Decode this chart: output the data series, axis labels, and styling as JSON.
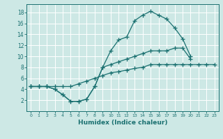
{
  "xlabel": "Humidex (Indice chaleur)",
  "background_color": "#cde8e5",
  "grid_color": "#ffffff",
  "line_color": "#1a7070",
  "xlim": [
    -0.5,
    23.5
  ],
  "ylim": [
    0,
    19.5
  ],
  "xticks": [
    0,
    1,
    2,
    3,
    4,
    5,
    6,
    7,
    8,
    9,
    10,
    11,
    12,
    13,
    14,
    15,
    16,
    17,
    18,
    19,
    20,
    21,
    22,
    23
  ],
  "yticks": [
    2,
    4,
    6,
    8,
    10,
    12,
    14,
    16,
    18
  ],
  "line1_x": [
    0,
    1,
    2,
    3,
    4,
    5,
    6,
    7,
    8,
    9,
    10,
    11,
    12,
    13,
    14,
    15,
    16,
    17,
    18,
    19,
    20
  ],
  "line1_y": [
    4.5,
    4.5,
    4.5,
    4.0,
    3.0,
    1.8,
    1.8,
    2.2,
    4.5,
    8.0,
    11.0,
    13.0,
    13.5,
    16.5,
    17.5,
    18.2,
    17.5,
    16.8,
    15.2,
    13.2,
    10.0
  ],
  "line2_x": [
    0,
    1,
    2,
    3,
    4,
    5,
    6,
    7,
    8,
    9,
    10,
    11,
    12,
    13,
    14,
    15,
    16,
    17,
    18,
    19,
    20
  ],
  "line2_y": [
    4.5,
    4.5,
    4.5,
    4.0,
    3.0,
    1.8,
    1.8,
    2.2,
    4.5,
    8.0,
    8.5,
    9.0,
    9.5,
    10.0,
    10.5,
    11.0,
    11.0,
    11.0,
    11.5,
    11.5,
    9.5
  ],
  "line3_x": [
    0,
    1,
    2,
    3,
    4,
    5,
    6,
    7,
    8,
    9,
    10,
    11,
    12,
    13,
    14,
    15,
    16,
    17,
    18,
    19,
    20,
    21,
    22,
    23
  ],
  "line3_y": [
    4.5,
    4.5,
    4.5,
    4.5,
    4.5,
    4.5,
    5.0,
    5.5,
    6.0,
    6.5,
    7.0,
    7.2,
    7.5,
    7.8,
    8.0,
    8.5,
    8.5,
    8.5,
    8.5,
    8.5,
    8.5,
    8.5,
    8.5,
    8.5
  ],
  "marker": "+",
  "markersize": 4,
  "linewidth": 0.9
}
